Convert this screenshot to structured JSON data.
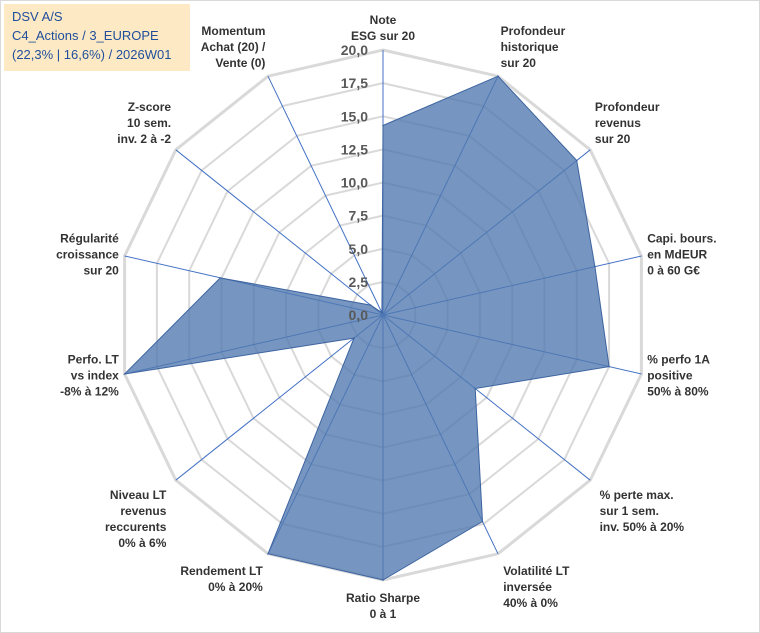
{
  "header": {
    "line1": "DSV A/S",
    "line2": "C4_Actions / 3_EUROPE",
    "line3": "(22,3% | 16,6%) / 2026W01"
  },
  "chart_data": {
    "type": "radar",
    "title": "DSV A/S",
    "rmin": 0,
    "rmax": 20,
    "ticks": [
      "0,0",
      "2,5",
      "5,0",
      "7,5",
      "10,0",
      "12,5",
      "15,0",
      "17,5",
      "20,0"
    ],
    "tick_values": [
      0,
      2.5,
      5,
      7.5,
      10,
      12.5,
      15,
      17.5,
      20
    ],
    "categories": [
      {
        "lines": [
          "Note",
          "ESG sur 20"
        ]
      },
      {
        "lines": [
          "Profondeur",
          "historique",
          "sur 20"
        ]
      },
      {
        "lines": [
          "Profondeur",
          "revenus",
          "sur 20"
        ]
      },
      {
        "lines": [
          "Capi. bours.",
          "en MdEUR",
          "0 à 60 G€"
        ]
      },
      {
        "lines": [
          "% perfo 1A",
          "positive",
          "50% à 80%"
        ]
      },
      {
        "lines": [
          "% perte max.",
          "sur 1 sem.",
          "inv. 50% à 20%"
        ]
      },
      {
        "lines": [
          "Volatilité LT",
          "inversée",
          "40% à 0%"
        ]
      },
      {
        "lines": [
          "Ratio Sharpe",
          "0 à 1"
        ]
      },
      {
        "lines": [
          "Rendement LT",
          "0% à 20%"
        ]
      },
      {
        "lines": [
          "Niveau LT",
          "revenus",
          "reccurents",
          "0% à 6%"
        ]
      },
      {
        "lines": [
          "Perfo. LT",
          "vs index",
          "-8% à 12%"
        ]
      },
      {
        "lines": [
          "Régularité",
          "croissance",
          "sur 20"
        ]
      },
      {
        "lines": [
          "Z-score",
          "10 sem.",
          "inv. 2 à -2"
        ]
      },
      {
        "lines": [
          "Momentum",
          "Achat (20) /",
          "Vente (0)"
        ]
      }
    ],
    "series": [
      {
        "name": "DSV A/S",
        "values": [
          14.3,
          20,
          18.7,
          16.4,
          17.5,
          8.9,
          17.3,
          20,
          20,
          2.8,
          20,
          12.6,
          1.2,
          0.2
        ],
        "color": "#4f78b0"
      }
    ],
    "grid_color": "#d9d9d9",
    "spoke_color": "#4472c4"
  }
}
